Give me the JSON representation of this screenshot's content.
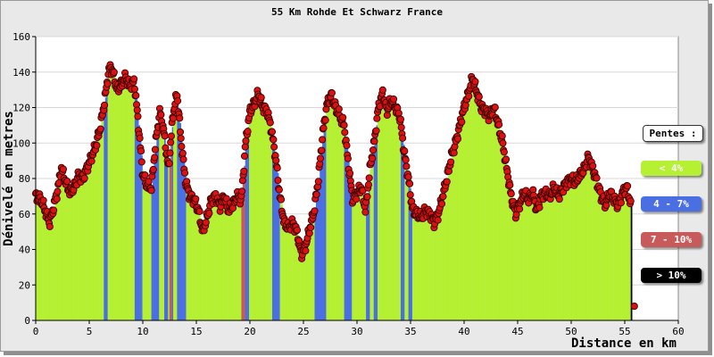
{
  "chart_data": {
    "type": "bar",
    "title": "55 Km Rohde Et Schwarz France",
    "xlabel": "Distance en km",
    "ylabel": "Dénivelé en metres",
    "xlim": [
      0,
      60
    ],
    "ylim": [
      0,
      160
    ],
    "x_ticks": [
      "0",
      "5",
      "10",
      "15",
      "20",
      "25",
      "30",
      "35",
      "40",
      "45",
      "50",
      "55",
      "60"
    ],
    "y_ticks": [
      "0",
      "20",
      "40",
      "60",
      "80",
      "100",
      "120",
      "140",
      "160"
    ],
    "grid": true,
    "profile": [
      [
        0.0,
        70
      ],
      [
        0.5,
        68
      ],
      [
        1.0,
        60
      ],
      [
        1.3,
        55
      ],
      [
        1.6,
        62
      ],
      [
        2.0,
        72
      ],
      [
        2.4,
        86
      ],
      [
        2.8,
        78
      ],
      [
        3.2,
        72
      ],
      [
        3.6,
        75
      ],
      [
        4.0,
        82
      ],
      [
        4.4,
        80
      ],
      [
        4.8,
        86
      ],
      [
        5.2,
        92
      ],
      [
        5.6,
        98
      ],
      [
        6.0,
        108
      ],
      [
        6.4,
        122
      ],
      [
        6.8,
        140
      ],
      [
        7.0,
        143
      ],
      [
        7.3,
        138
      ],
      [
        7.6,
        130
      ],
      [
        8.0,
        133
      ],
      [
        8.4,
        137
      ],
      [
        8.8,
        132
      ],
      [
        9.2,
        135
      ],
      [
        9.6,
        110
      ],
      [
        10.0,
        82
      ],
      [
        10.4,
        76
      ],
      [
        10.8,
        75
      ],
      [
        11.2,
        100
      ],
      [
        11.6,
        118
      ],
      [
        12.0,
        105
      ],
      [
        12.4,
        85
      ],
      [
        12.8,
        115
      ],
      [
        13.2,
        128
      ],
      [
        13.6,
        100
      ],
      [
        14.0,
        78
      ],
      [
        14.4,
        70
      ],
      [
        14.8,
        68
      ],
      [
        15.2,
        62
      ],
      [
        15.6,
        50
      ],
      [
        16.0,
        58
      ],
      [
        16.4,
        68
      ],
      [
        16.8,
        70
      ],
      [
        17.2,
        64
      ],
      [
        17.6,
        70
      ],
      [
        18.0,
        62
      ],
      [
        18.4,
        65
      ],
      [
        18.8,
        70
      ],
      [
        19.2,
        68
      ],
      [
        19.6,
        100
      ],
      [
        20.0,
        118
      ],
      [
        20.4,
        122
      ],
      [
        20.8,
        128
      ],
      [
        21.2,
        120
      ],
      [
        21.6,
        118
      ],
      [
        22.0,
        108
      ],
      [
        22.4,
        92
      ],
      [
        22.8,
        70
      ],
      [
        23.2,
        55
      ],
      [
        23.6,
        52
      ],
      [
        24.0,
        55
      ],
      [
        24.4,
        50
      ],
      [
        24.8,
        37
      ],
      [
        25.2,
        42
      ],
      [
        25.6,
        52
      ],
      [
        26.0,
        62
      ],
      [
        26.4,
        80
      ],
      [
        26.8,
        105
      ],
      [
        27.2,
        122
      ],
      [
        27.6,
        127
      ],
      [
        28.0,
        120
      ],
      [
        28.4,
        115
      ],
      [
        28.8,
        110
      ],
      [
        29.2,
        88
      ],
      [
        29.6,
        68
      ],
      [
        30.0,
        72
      ],
      [
        30.4,
        75
      ],
      [
        30.8,
        62
      ],
      [
        31.2,
        85
      ],
      [
        31.6,
        100
      ],
      [
        32.0,
        120
      ],
      [
        32.4,
        128
      ],
      [
        32.8,
        118
      ],
      [
        33.2,
        124
      ],
      [
        33.6,
        120
      ],
      [
        34.0,
        115
      ],
      [
        34.4,
        95
      ],
      [
        34.8,
        80
      ],
      [
        35.2,
        62
      ],
      [
        35.6,
        60
      ],
      [
        36.0,
        58
      ],
      [
        36.4,
        62
      ],
      [
        36.8,
        60
      ],
      [
        37.2,
        55
      ],
      [
        37.6,
        60
      ],
      [
        38.0,
        70
      ],
      [
        38.4,
        80
      ],
      [
        38.8,
        92
      ],
      [
        39.2,
        100
      ],
      [
        39.6,
        110
      ],
      [
        40.0,
        120
      ],
      [
        40.4,
        128
      ],
      [
        40.8,
        137
      ],
      [
        41.2,
        128
      ],
      [
        41.6,
        120
      ],
      [
        42.0,
        118
      ],
      [
        42.4,
        115
      ],
      [
        42.8,
        120
      ],
      [
        43.2,
        110
      ],
      [
        43.6,
        100
      ],
      [
        44.0,
        85
      ],
      [
        44.4,
        70
      ],
      [
        44.8,
        60
      ],
      [
        45.2,
        66
      ],
      [
        45.6,
        72
      ],
      [
        46.0,
        68
      ],
      [
        46.4,
        72
      ],
      [
        46.8,
        62
      ],
      [
        47.2,
        70
      ],
      [
        47.6,
        72
      ],
      [
        48.0,
        70
      ],
      [
        48.4,
        75
      ],
      [
        48.8,
        70
      ],
      [
        49.2,
        74
      ],
      [
        49.6,
        78
      ],
      [
        50.0,
        80
      ],
      [
        50.4,
        78
      ],
      [
        50.8,
        82
      ],
      [
        51.2,
        85
      ],
      [
        51.6,
        92
      ],
      [
        52.0,
        86
      ],
      [
        52.4,
        78
      ],
      [
        52.8,
        70
      ],
      [
        53.2,
        65
      ],
      [
        53.6,
        72
      ],
      [
        54.0,
        68
      ],
      [
        54.4,
        65
      ],
      [
        54.8,
        72
      ],
      [
        55.2,
        75
      ],
      [
        55.6,
        64
      ],
      [
        55.9,
        8
      ]
    ],
    "legend": {
      "title": "Pentes :",
      "placement": "right",
      "items": [
        {
          "label": "< 4%",
          "color": "#b5f032",
          "text_color": "#ffffff"
        },
        {
          "label": "4 - 7%",
          "color": "#4a6fe3",
          "text_color": "#ffffff"
        },
        {
          "label": "7 - 10%",
          "color": "#c85a5a",
          "text_color": "#ffffff"
        },
        {
          "label": "> 10%",
          "color": "#000000",
          "text_color": "#ffffff"
        }
      ]
    },
    "colors": {
      "point_fill": "#dd1111",
      "point_stroke": "#3a0000",
      "grid": "#d8d8d8",
      "plot_background": "#ffffff",
      "frame_background": "#e9e9e9"
    }
  }
}
